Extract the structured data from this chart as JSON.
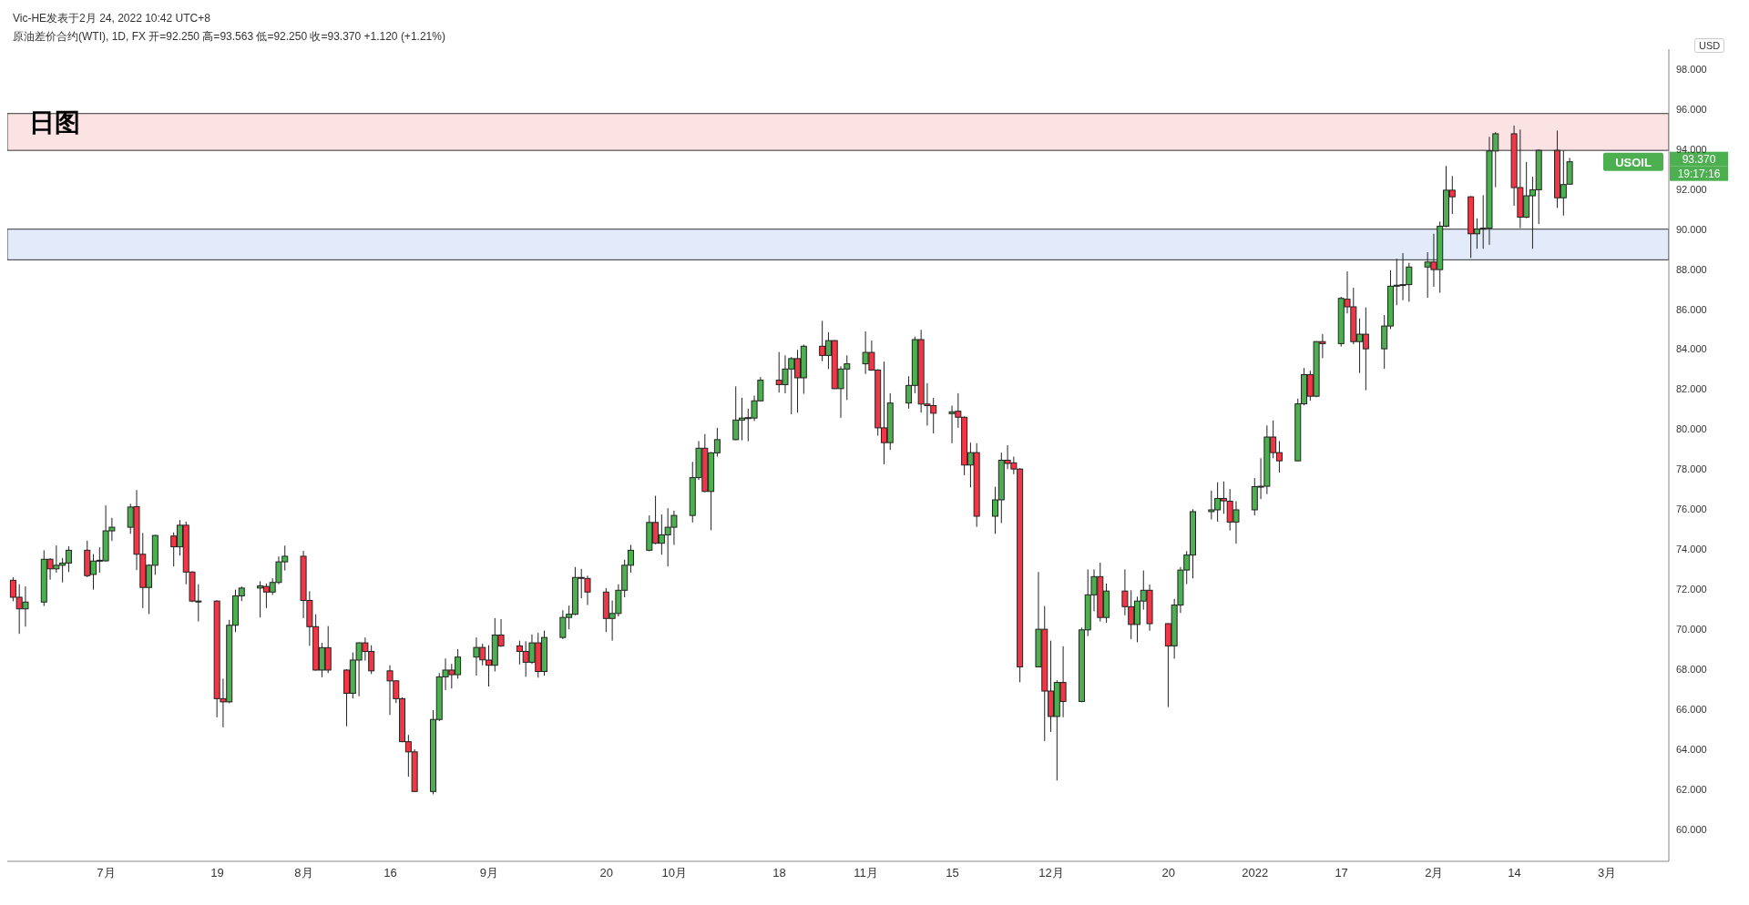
{
  "chart_data": {
    "type": "candlestick",
    "title": "日图",
    "ylabel": "USD",
    "annotations": [
      "Vic-HE发表于2月 24, 2022 10:42 UTC+8",
      "原油差价合约(WTI), 1D, FX  开=92.250  高=93.563  低=92.250  收=93.370  +1.120 (+1.21%)",
      "USOIL",
      "93.370",
      "19:17:16"
    ],
    "colors": [
      "#f23645",
      "#f23645",
      "#4caf50",
      "#4caf50",
      "#f23645",
      "#4caf50",
      "#4caf50",
      "#4caf50",
      "#f23645",
      "#4caf50",
      "#4caf50",
      "#4caf50",
      "#4caf50",
      "#4caf50",
      "#f23645",
      "#f23645",
      "#4caf50",
      "#4caf50",
      "#f23645",
      "#4caf50",
      "#f23645",
      "#f23645",
      "#f23645",
      "#f23645",
      "#f23645",
      "#4caf50",
      "#4caf50",
      "#4caf50",
      "#4caf50",
      "#f23645",
      "#4caf50",
      "#4caf50",
      "#4caf50",
      "#f23645",
      "#f23645",
      "#f23645",
      "#4caf50",
      "#f23645",
      "#f23645",
      "#4caf50",
      "#4caf50",
      "#f23645",
      "#f23645",
      "#f23645",
      "#f23645",
      "#f23645",
      "#f23645",
      "#f23645",
      "#4caf50",
      "#4caf50",
      "#4caf50",
      "#f23645",
      "#4caf50",
      "#4caf50",
      "#f23645",
      "#f23645",
      "#4caf50",
      "#f23645",
      "#f23645",
      "#f23645",
      "#4caf50",
      "#f23645",
      "#4caf50",
      "#4caf50",
      "#4caf50",
      "#4caf50",
      "#f23645",
      "#f23645",
      "#f23645",
      "#4caf50",
      "#4caf50",
      "#4caf50",
      "#4caf50",
      "#4caf50",
      "#f23645",
      "#4caf50",
      "#4caf50",
      "#4caf50",
      "#4caf50",
      "#4caf50",
      "#f23645",
      "#4caf50",
      "#4caf50",
      "#4caf50",
      "#4caf50",
      "#4caf50",
      "#4caf50",
      "#4caf50",
      "#f23645",
      "#4caf50",
      "#4caf50",
      "#f23645",
      "#4caf50",
      "#f23645",
      "#4caf50",
      "#f23645",
      "#4caf50",
      "#4caf50",
      "#4caf50",
      "#f23645",
      "#f23645",
      "#f23645",
      "#4caf50",
      "#4caf50",
      "#4caf50",
      "#f23645",
      "#f23645",
      "#f23645",
      "#4caf50",
      "#f23645",
      "#f23645",
      "#4caf50",
      "#f23645",
      "#4caf50",
      "#4caf50",
      "#f23645",
      "#f23645",
      "#f23645",
      "#4caf50",
      "#f23645",
      "#f23645",
      "#4caf50",
      "#f23645",
      "#4caf50",
      "#4caf50",
      "#4caf50",
      "#f23645",
      "#4caf50",
      "#f23645",
      "#f23645",
      "#4caf50",
      "#4caf50",
      "#f23645",
      "#f23645",
      "#4caf50",
      "#4caf50",
      "#4caf50",
      "#4caf50",
      "#4caf50",
      "#4caf50",
      "#f23645",
      "#f23645",
      "#4caf50",
      "#4caf50",
      "#4caf50",
      "#4caf50",
      "#f23645",
      "#f23645",
      "#4caf50",
      "#4caf50",
      "#f23645",
      "#4caf50",
      "#f23645",
      "#4caf50",
      "#f23645",
      "#f23645",
      "#4caf50",
      "#f23645",
      "#4caf50",
      "#4caf50",
      "#4caf50",
      "#4caf50",
      "#4caf50",
      "#4caf50",
      "#f23645",
      "#4caf50",
      "#4caf50",
      "#f23645",
      "#f23645",
      "#4caf50",
      "#4caf50",
      "#4caf50",
      "#4caf50",
      "#f23645",
      "#f23645",
      "#4caf50",
      "#4caf50",
      "#4caf50",
      "#f23645",
      "#4caf50",
      "#4caf50"
    ],
    "x": [
      "2021-06-16",
      "2021-06-17",
      "2021-06-18",
      "2021-06-21",
      "2021-06-22",
      "2021-06-23",
      "2021-06-24",
      "2021-06-25",
      "2021-06-28",
      "2021-06-29",
      "2021-06-30",
      "2021-07-01",
      "2021-07-02",
      "2021-07-05",
      "2021-07-06",
      "2021-07-07",
      "2021-07-08",
      "2021-07-09",
      "2021-07-12",
      "2021-07-13",
      "2021-07-14",
      "2021-07-15",
      "2021-07-16",
      "2021-07-19",
      "2021-07-20",
      "2021-07-21",
      "2021-07-22",
      "2021-07-23",
      "2021-07-26",
      "2021-07-27",
      "2021-07-28",
      "2021-07-29",
      "2021-07-30",
      "2021-08-02",
      "2021-08-03",
      "2021-08-04",
      "2021-08-05",
      "2021-08-06",
      "2021-08-09",
      "2021-08-10",
      "2021-08-11",
      "2021-08-12",
      "2021-08-13",
      "2021-08-16",
      "2021-08-17",
      "2021-08-18",
      "2021-08-19",
      "2021-08-20",
      "2021-08-23",
      "2021-08-24",
      "2021-08-25",
      "2021-08-26",
      "2021-08-27",
      "2021-08-30",
      "2021-08-31",
      "2021-09-01",
      "2021-09-02",
      "2021-09-03",
      "2021-09-06",
      "2021-09-07",
      "2021-09-08",
      "2021-09-09",
      "2021-09-10",
      "2021-09-13",
      "2021-09-14",
      "2021-09-15",
      "2021-09-16",
      "2021-09-17",
      "2021-09-20",
      "2021-09-21",
      "2021-09-22",
      "2021-09-23",
      "2021-09-24",
      "2021-09-27",
      "2021-09-28",
      "2021-09-29",
      "2021-09-30",
      "2021-10-01",
      "2021-10-04",
      "2021-10-05",
      "2021-10-06",
      "2021-10-07",
      "2021-10-08",
      "2021-10-11",
      "2021-10-12",
      "2021-10-13",
      "2021-10-14",
      "2021-10-15",
      "2021-10-18",
      "2021-10-19",
      "2021-10-20",
      "2021-10-21",
      "2021-10-22",
      "2021-10-25",
      "2021-10-26",
      "2021-10-27",
      "2021-10-28",
      "2021-10-29",
      "2021-11-01",
      "2021-11-02",
      "2021-11-03",
      "2021-11-04",
      "2021-11-05",
      "2021-11-08",
      "2021-11-09",
      "2021-11-10",
      "2021-11-11",
      "2021-11-12",
      "2021-11-15",
      "2021-11-16",
      "2021-11-17",
      "2021-11-18",
      "2021-11-19",
      "2021-11-22",
      "2021-11-23",
      "2021-11-24",
      "2021-11-25",
      "2021-11-26",
      "2021-11-29",
      "2021-11-30",
      "2021-12-01",
      "2021-12-02",
      "2021-12-03",
      "2021-12-06",
      "2021-12-07",
      "2021-12-08",
      "2021-12-09",
      "2021-12-10",
      "2021-12-13",
      "2021-12-14",
      "2021-12-15",
      "2021-12-16",
      "2021-12-17",
      "2021-12-20",
      "2021-12-21",
      "2021-12-22",
      "2021-12-23",
      "2021-12-24",
      "2021-12-27",
      "2021-12-28",
      "2021-12-29",
      "2021-12-30",
      "2021-12-31",
      "2022-01-03",
      "2022-01-04",
      "2022-01-05",
      "2022-01-06",
      "2022-01-07",
      "2022-01-10",
      "2022-01-11",
      "2022-01-12",
      "2022-01-13",
      "2022-01-14",
      "2022-01-17",
      "2022-01-18",
      "2022-01-19",
      "2022-01-20",
      "2022-01-21",
      "2022-01-24",
      "2022-01-25",
      "2022-01-26",
      "2022-01-27",
      "2022-01-28",
      "2022-01-31",
      "2022-02-01",
      "2022-02-02",
      "2022-02-03",
      "2022-02-04",
      "2022-02-07",
      "2022-02-08",
      "2022-02-09",
      "2022-02-10",
      "2022-02-11",
      "2022-02-14",
      "2022-02-15",
      "2022-02-16",
      "2022-02-17",
      "2022-02-18",
      "2022-02-21",
      "2022-02-22",
      "2022-02-23"
    ],
    "ohlc": [
      [
        72.45,
        72.6,
        71.4,
        71.6
      ],
      [
        71.6,
        72.25,
        69.77,
        71.02
      ],
      [
        71.02,
        72.14,
        70.13,
        71.36
      ],
      [
        71.36,
        73.95,
        71.16,
        73.5
      ],
      [
        73.5,
        73.55,
        72.48,
        73.02
      ],
      [
        73.02,
        74.19,
        72.83,
        73.2
      ],
      [
        73.2,
        73.56,
        72.34,
        73.31
      ],
      [
        73.31,
        74.15,
        72.86,
        73.95
      ],
      [
        73.95,
        74.43,
        72.6,
        72.68
      ],
      [
        72.74,
        73.76,
        71.98,
        73.41
      ],
      [
        73.41,
        74.1,
        72.83,
        73.45
      ],
      [
        73.42,
        76.19,
        73.38,
        74.92
      ],
      [
        74.92,
        75.57,
        74.41,
        75.1
      ],
      [
        75.1,
        76.27,
        74.77,
        76.11
      ],
      [
        76.13,
        76.96,
        72.96,
        73.75
      ],
      [
        73.75,
        74.81,
        71.06,
        72.09
      ],
      [
        72.09,
        73.25,
        70.76,
        73.2
      ],
      [
        73.2,
        74.72,
        72.72,
        74.69
      ],
      [
        74.66,
        74.84,
        73.14,
        74.12
      ],
      [
        74.12,
        75.46,
        73.68,
        75.2
      ],
      [
        75.2,
        75.38,
        72.25,
        72.86
      ],
      [
        72.86,
        72.9,
        71.35,
        71.41
      ],
      [
        71.41,
        72.25,
        70.39,
        71.38
      ],
      [
        71.41,
        71.45,
        65.6,
        66.53
      ],
      [
        66.53,
        67.53,
        65.1,
        66.37
      ],
      [
        66.37,
        70.47,
        66.3,
        70.2
      ],
      [
        70.2,
        71.98,
        69.86,
        71.67
      ],
      [
        71.67,
        72.14,
        71.41,
        72.06
      ],
      [
        72.06,
        72.4,
        70.59,
        72.17
      ],
      [
        72.14,
        72.29,
        71.06,
        71.86
      ],
      [
        71.86,
        72.55,
        71.72,
        72.34
      ],
      [
        72.34,
        73.64,
        72.25,
        73.37
      ],
      [
        73.37,
        74.18,
        72.94,
        73.65
      ],
      [
        73.65,
        73.92,
        70.56,
        71.44
      ],
      [
        71.44,
        71.9,
        69.17,
        70.13
      ],
      [
        70.13,
        70.75,
        67.93,
        67.96
      ],
      [
        67.96,
        69.32,
        67.6,
        69.08
      ],
      [
        69.08,
        70.16,
        67.81,
        67.96
      ],
      [
        67.96,
        68.0,
        65.15,
        66.8
      ],
      [
        66.8,
        68.84,
        66.54,
        68.46
      ],
      [
        68.46,
        69.35,
        66.65,
        69.32
      ],
      [
        69.32,
        69.59,
        68.43,
        68.89
      ],
      [
        68.89,
        69.2,
        67.76,
        67.92
      ],
      [
        67.92,
        68.2,
        65.72,
        67.42
      ],
      [
        67.42,
        67.45,
        66.31,
        66.53
      ],
      [
        66.53,
        66.6,
        64.35,
        64.38
      ],
      [
        64.38,
        64.72,
        62.63,
        63.87
      ],
      [
        63.87,
        64.0,
        61.86,
        61.89
      ],
      [
        61.89,
        65.95,
        61.75,
        65.49
      ],
      [
        65.49,
        67.81,
        65.41,
        67.62
      ],
      [
        67.62,
        68.54,
        66.96,
        67.96
      ],
      [
        67.96,
        68.27,
        67.04,
        67.73
      ],
      [
        67.73,
        69.0,
        67.53,
        68.61
      ],
      [
        68.61,
        69.59,
        67.68,
        69.09
      ],
      [
        69.09,
        69.28,
        68.2,
        68.47
      ],
      [
        68.46,
        69.2,
        67.14,
        68.2
      ],
      [
        68.2,
        70.56,
        67.89,
        69.71
      ],
      [
        69.71,
        70.51,
        69.12,
        69.17
      ],
      [
        69.17,
        69.43,
        68.24,
        68.89
      ],
      [
        68.89,
        69.4,
        67.62,
        68.35
      ],
      [
        68.35,
        69.74,
        68.27,
        69.32
      ],
      [
        69.32,
        69.82,
        67.58,
        67.89
      ],
      [
        67.89,
        69.93,
        67.68,
        69.59
      ],
      [
        69.59,
        70.95,
        69.51,
        70.59
      ],
      [
        70.59,
        71.18,
        70.0,
        70.75
      ],
      [
        70.75,
        73.11,
        70.7,
        72.59
      ],
      [
        72.59,
        73.02,
        71.55,
        72.57
      ],
      [
        72.54,
        72.68,
        71.21,
        71.86
      ],
      [
        71.86,
        72.06,
        69.86,
        70.54
      ],
      [
        70.54,
        71.44,
        69.43,
        70.79
      ],
      [
        70.79,
        72.25,
        70.64,
        71.95
      ],
      [
        71.95,
        73.48,
        71.6,
        73.2
      ],
      [
        73.2,
        74.22,
        72.83,
        73.95
      ],
      [
        73.95,
        75.69,
        73.9,
        75.34
      ],
      [
        75.34,
        76.67,
        74.25,
        74.3
      ],
      [
        74.3,
        75.74,
        73.73,
        74.72
      ],
      [
        74.72,
        76.05,
        73.14,
        75.1
      ],
      [
        75.1,
        75.93,
        74.22,
        75.69
      ],
      [
        75.69,
        78.37,
        75.34,
        77.58
      ],
      [
        77.58,
        79.41,
        77.47,
        79.05
      ],
      [
        79.05,
        79.76,
        76.85,
        76.89
      ],
      [
        76.89,
        78.86,
        74.95,
        78.82
      ],
      [
        78.82,
        80.07,
        78.63,
        79.48
      ],
      [
        79.48,
        82.14,
        79.45,
        80.46
      ],
      [
        80.46,
        81.57,
        79.45,
        80.56
      ],
      [
        80.56,
        81.03,
        79.4,
        80.58
      ],
      [
        80.56,
        81.68,
        80.41,
        81.42
      ],
      [
        81.42,
        82.61,
        81.4,
        82.45
      ],
      [
        82.45,
        83.86,
        81.83,
        82.23
      ],
      [
        82.23,
        83.69,
        81.8,
        83.01
      ],
      [
        83.01,
        83.61,
        80.75,
        83.53
      ],
      [
        83.53,
        83.97,
        80.83,
        82.57
      ],
      [
        82.57,
        84.23,
        81.77,
        84.15
      ],
      [
        84.15,
        85.42,
        83.4,
        83.69
      ],
      [
        83.69,
        84.85,
        83.01,
        84.43
      ],
      [
        84.43,
        84.46,
        82.0,
        82.03
      ],
      [
        82.03,
        83.15,
        80.57,
        83.01
      ],
      [
        83.01,
        83.69,
        81.46,
        83.27
      ],
      [
        83.27,
        84.89,
        82.76,
        83.84
      ],
      [
        83.84,
        84.43,
        82.92,
        82.96
      ],
      [
        82.96,
        83.0,
        79.68,
        80.07
      ],
      [
        80.07,
        83.38,
        78.25,
        79.33
      ],
      [
        79.33,
        81.8,
        78.97,
        81.31
      ],
      [
        81.31,
        82.65,
        81.03,
        82.19
      ],
      [
        82.19,
        84.63,
        81.8,
        84.48
      ],
      [
        84.48,
        84.97,
        80.83,
        81.26
      ],
      [
        81.26,
        82.3,
        80.18,
        81.18
      ],
      [
        81.18,
        81.57,
        79.79,
        80.8
      ],
      [
        80.78,
        81.18,
        79.3,
        80.87
      ],
      [
        80.9,
        81.8,
        80.07,
        80.6
      ],
      [
        80.6,
        80.64,
        77.7,
        78.21
      ],
      [
        78.21,
        79.33,
        77.09,
        78.83
      ],
      [
        78.83,
        79.3,
        75.12,
        75.65
      ],
      [
        75.65,
        77.12,
        74.77,
        76.47
      ],
      [
        76.47,
        78.83,
        75.31,
        78.45
      ],
      [
        78.45,
        79.2,
        78.01,
        78.29
      ],
      [
        78.32,
        78.63,
        77.75,
        78.01
      ],
      [
        78.01,
        78.05,
        67.35,
        68.12
      ],
      [
        68.12,
        72.86,
        68.1,
        70.0
      ],
      [
        70.0,
        71.16,
        64.41,
        66.91
      ],
      [
        66.91,
        69.43,
        64.87,
        65.64
      ],
      [
        65.64,
        67.45,
        62.44,
        67.34
      ],
      [
        67.34,
        69.15,
        65.6,
        66.39
      ],
      [
        66.39,
        70.08,
        66.35,
        69.97
      ],
      [
        69.97,
        72.99,
        69.66,
        71.72
      ],
      [
        71.72,
        72.99,
        70.9,
        72.63
      ],
      [
        72.63,
        73.33,
        70.39,
        70.59
      ],
      [
        70.59,
        72.29,
        70.33,
        71.91
      ],
      [
        71.91,
        72.99,
        70.7,
        71.13
      ],
      [
        71.13,
        71.95,
        69.51,
        70.24
      ],
      [
        70.24,
        71.63,
        69.35,
        71.41
      ],
      [
        71.41,
        72.94,
        70.98,
        71.95
      ],
      [
        71.95,
        72.24,
        69.93,
        70.28
      ],
      [
        70.28,
        70.3,
        66.11,
        69.17
      ],
      [
        69.17,
        71.52,
        68.53,
        71.21
      ],
      [
        71.21,
        73.11,
        70.82,
        72.96
      ],
      [
        72.96,
        73.91,
        72.26,
        73.71
      ],
      [
        73.71,
        76.0,
        72.55,
        75.88
      ],
      [
        75.88,
        76.93,
        75.49,
        75.97
      ],
      [
        75.97,
        77.35,
        75.38,
        76.54
      ],
      [
        76.54,
        77.39,
        75.77,
        76.42
      ],
      [
        76.4,
        77.01,
        74.94,
        75.36
      ],
      [
        75.36,
        76.4,
        74.28,
        75.97
      ],
      [
        75.97,
        77.56,
        75.69,
        77.13
      ],
      [
        77.13,
        78.55,
        76.51,
        77.15
      ],
      [
        77.15,
        80.19,
        76.76,
        79.61
      ],
      [
        79.61,
        80.44,
        78.55,
        78.83
      ],
      [
        78.83,
        79.41,
        77.84,
        78.42
      ],
      [
        78.42,
        81.53,
        78.4,
        81.27
      ],
      [
        81.27,
        83.06,
        81.19,
        82.73
      ],
      [
        82.73,
        82.92,
        81.43,
        81.65
      ],
      [
        81.65,
        84.4,
        81.6,
        84.38
      ],
      [
        84.38,
        84.76,
        83.55,
        84.28
      ],
      [
        84.28,
        86.62,
        84.13,
        86.54
      ],
      [
        86.5,
        87.89,
        85.79,
        86.12
      ],
      [
        86.12,
        87.07,
        84.25,
        84.38
      ],
      [
        84.38,
        85.54,
        82.81,
        84.75
      ],
      [
        84.75,
        86.09,
        81.95,
        84.02
      ],
      [
        84.02,
        85.71,
        83.02,
        85.16
      ],
      [
        85.16,
        87.94,
        85.01,
        87.15
      ],
      [
        87.15,
        88.52,
        86.2,
        87.2
      ],
      [
        87.2,
        88.8,
        86.45,
        87.23
      ],
      [
        87.23,
        88.32,
        86.37,
        88.11
      ],
      [
        88.11,
        88.85,
        86.57,
        88.36
      ],
      [
        88.36,
        89.77,
        87.12,
        87.98
      ],
      [
        87.98,
        90.38,
        86.82,
        90.15
      ],
      [
        90.15,
        93.16,
        90.1,
        91.95
      ],
      [
        91.95,
        92.66,
        90.76,
        91.62
      ],
      [
        91.62,
        91.65,
        88.56,
        89.77
      ],
      [
        89.77,
        90.54,
        89.02,
        90.01
      ],
      [
        90.01,
        91.7,
        89.02,
        90.05
      ],
      [
        90.05,
        94.62,
        89.22,
        93.91
      ],
      [
        93.91,
        94.85,
        92.1,
        94.77
      ],
      [
        94.77,
        95.18,
        91.17,
        92.08
      ],
      [
        92.08,
        94.98,
        90.05,
        90.6
      ],
      [
        90.6,
        93.36,
        90.55,
        91.67
      ],
      [
        91.67,
        92.62,
        89.02,
        91.97
      ],
      [
        91.97,
        93.99,
        90.26,
        93.94
      ],
      [
        93.94,
        94.93,
        91.06,
        91.57
      ],
      [
        91.57,
        93.94,
        90.68,
        92.23
      ],
      [
        92.25,
        93.563,
        92.25,
        93.37
      ]
    ],
    "xlim": [
      "2021-06-15",
      "2022-03-11"
    ],
    "xticks": [
      {
        "value": "2021-07-01",
        "label": "7月"
      },
      {
        "value": "2021-07-19",
        "label": "19"
      },
      {
        "value": "2021-08-02",
        "label": "8月"
      },
      {
        "value": "2021-08-16",
        "label": "16"
      },
      {
        "value": "2021-09-01",
        "label": "9月"
      },
      {
        "value": "2021-09-20",
        "label": "20"
      },
      {
        "value": "2021-10-01",
        "label": "10月"
      },
      {
        "value": "2021-10-18",
        "label": "18"
      },
      {
        "value": "2021-11-01",
        "label": "11月"
      },
      {
        "value": "2021-11-15",
        "label": "15"
      },
      {
        "value": "2021-12-01",
        "label": "12月"
      },
      {
        "value": "2021-12-20",
        "label": "20"
      },
      {
        "value": "2022-01-03",
        "label": "2022"
      },
      {
        "value": "2022-01-17",
        "label": "17"
      },
      {
        "value": "2022-02-01",
        "label": "2月"
      },
      {
        "value": "2022-02-14",
        "label": "14"
      },
      {
        "value": "2022-03-01",
        "label": "3月"
      }
    ],
    "ylim": [
      58.4,
      99.0
    ],
    "yticks": [
      {
        "value": 60,
        "label": "60.000"
      },
      {
        "value": 62,
        "label": "62.000"
      },
      {
        "value": 64,
        "label": "64.000"
      },
      {
        "value": 66,
        "label": "66.000"
      },
      {
        "value": 68,
        "label": "68.000"
      },
      {
        "value": 70,
        "label": "70.000"
      },
      {
        "value": 72,
        "label": "72.000"
      },
      {
        "value": 74,
        "label": "74.000"
      },
      {
        "value": 76,
        "label": "76.000"
      },
      {
        "value": 78,
        "label": "78.000"
      },
      {
        "value": 80,
        "label": "80.000"
      },
      {
        "value": 82,
        "label": "82.000"
      },
      {
        "value": 84,
        "label": "84.000"
      },
      {
        "value": 86,
        "label": "86.000"
      },
      {
        "value": 88,
        "label": "88.000"
      },
      {
        "value": 90,
        "label": "90.000"
      },
      {
        "value": 92,
        "label": "92.000"
      },
      {
        "value": 94,
        "label": "94.000"
      },
      {
        "value": 96,
        "label": "96.000"
      },
      {
        "value": 98,
        "label": "98.000"
      }
    ],
    "bands": [
      {
        "axis": "y",
        "from": 93.94,
        "to": 95.78,
        "color": "#fbe3e4"
      },
      {
        "axis": "y",
        "from": 88.47,
        "to": 90.0,
        "color": "#e3ebfb"
      }
    ]
  }
}
